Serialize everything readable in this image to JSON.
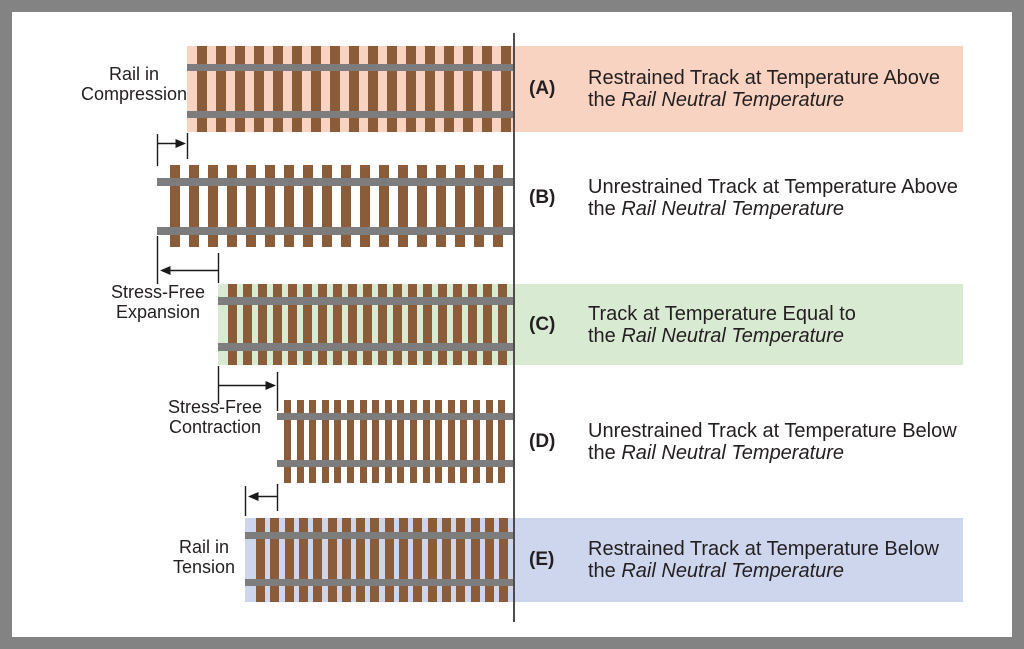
{
  "colors": {
    "tie": "#8b5c3a",
    "rail": "#7d7d7d",
    "frame_border": "#838383",
    "reference_line": "#4d4d4d",
    "text": "#231f20",
    "arrow": "#1a1a1a"
  },
  "side_labels": [
    {
      "line1": "Rail in",
      "line2": "Compression"
    },
    {
      "line1": "Stress-Free",
      "line2": "Expansion"
    },
    {
      "line1": "Stress-Free",
      "line2": "Contraction"
    },
    {
      "line1": "Rail in",
      "line2": "Tension"
    }
  ],
  "rows": [
    {
      "letter": "(A)",
      "desc_line1": "Restrained Track at Temperature Above",
      "desc_line2_plain": "the ",
      "desc_line2_italic": "Rail Neutral Temperature",
      "band_color": "#f9d3c2"
    },
    {
      "letter": "(B)",
      "desc_line1": "Unrestrained Track at Temperature Above",
      "desc_line2_plain": "the ",
      "desc_line2_italic": "Rail Neutral Temperature",
      "band_color": ""
    },
    {
      "letter": "(C)",
      "desc_line1": "Track at Temperature Equal to",
      "desc_line2_plain": "the ",
      "desc_line2_italic": "Rail Neutral Temperature",
      "band_color": "#d9ead3"
    },
    {
      "letter": "(D)",
      "desc_line1": "Unrestrained Track at Temperature Below",
      "desc_line2_plain": "the ",
      "desc_line2_italic": "Rail Neutral Temperature",
      "band_color": ""
    },
    {
      "letter": "(E)",
      "desc_line1": "Restrained Track at Temperature Below",
      "desc_line2_plain": "the ",
      "desc_line2_italic": "Rail Neutral Temperature",
      "band_color": "#cdd6ec"
    }
  ]
}
